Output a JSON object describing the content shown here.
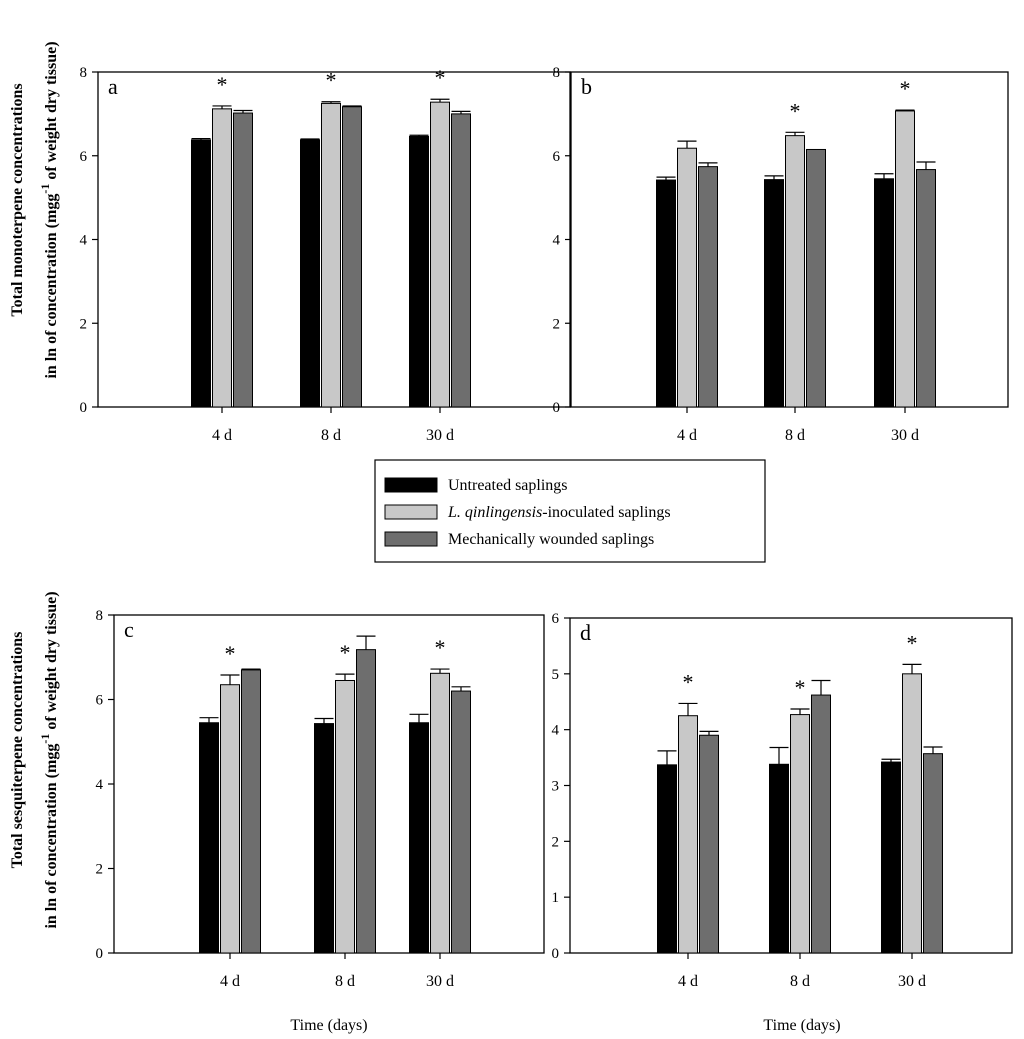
{
  "chart_data": {
    "colors": {
      "untreated": "#000000",
      "inoculated": "#c8c8c8",
      "wounded": "#6e6e6e"
    },
    "legend": [
      {
        "key": "untreated",
        "label": "Untreated saplings"
      },
      {
        "key": "inoculated",
        "label_italic": "L. qinlingensis",
        "label_rest": "-inoculated saplings"
      },
      {
        "key": "wounded",
        "label": "Mechanically wounded saplings"
      }
    ],
    "ylabel_top": {
      "line1": "Total monoterpene concentrations",
      "line2_pre": "in ln of concentration (mgg",
      "line2_sup": "-1",
      "line2_post": " of weight dry tissue)"
    },
    "ylabel_bottom": {
      "line1": "Total sesquiterpene concentrations",
      "line2_pre": "in ln of concentration (mgg",
      "line2_sup": "-1",
      "line2_post": " of weight dry tissue)"
    },
    "xlabel": "Time (days)",
    "panels": [
      {
        "id": "a",
        "type": "bar",
        "label": "a",
        "ylim": [
          0,
          8
        ],
        "yticks": [
          "0",
          "2",
          "4",
          "6",
          "8"
        ],
        "categories": [
          "4 d",
          "8 d",
          "30 d"
        ],
        "series": [
          {
            "name": "Untreated saplings",
            "key": "untreated",
            "values": [
              6.38,
              6.38,
              6.46
            ],
            "errors": [
              0.03,
              0.02,
              0.03
            ]
          },
          {
            "name": "L. qinlingensis-inoculated saplings",
            "key": "inoculated",
            "values": [
              7.12,
              7.25,
              7.28
            ],
            "errors": [
              0.07,
              0.04,
              0.07
            ]
          },
          {
            "name": "Mechanically wounded saplings",
            "key": "wounded",
            "values": [
              7.02,
              7.17,
              7.0
            ],
            "errors": [
              0.06,
              0.02,
              0.06
            ]
          }
        ],
        "annotations": [
          "*",
          "*",
          "*"
        ]
      },
      {
        "id": "b",
        "type": "bar",
        "label": "b",
        "ylim": [
          0,
          8
        ],
        "yticks": [
          "0",
          "2",
          "4",
          "6",
          "8"
        ],
        "categories": [
          "4 d",
          "8 d",
          "30 d"
        ],
        "series": [
          {
            "name": "Untreated saplings",
            "key": "untreated",
            "values": [
              5.42,
              5.43,
              5.45
            ],
            "errors": [
              0.07,
              0.09,
              0.12
            ]
          },
          {
            "name": "L. qinlingensis-inoculated saplings",
            "key": "inoculated",
            "values": [
              6.18,
              6.48,
              7.07
            ],
            "errors": [
              0.17,
              0.08,
              0.02
            ]
          },
          {
            "name": "Mechanically wounded saplings",
            "key": "wounded",
            "values": [
              5.74,
              6.15,
              5.67
            ],
            "errors": [
              0.09,
              0.0,
              0.18
            ]
          }
        ],
        "annotations": [
          "",
          "*",
          "*"
        ]
      },
      {
        "id": "c",
        "type": "bar",
        "label": "c",
        "ylim": [
          0,
          8
        ],
        "yticks": [
          "0",
          "2",
          "4",
          "6",
          "8"
        ],
        "categories": [
          "4 d",
          "8 d",
          "30 d"
        ],
        "series": [
          {
            "name": "Untreated saplings",
            "key": "untreated",
            "values": [
              5.45,
              5.43,
              5.45
            ],
            "errors": [
              0.12,
              0.12,
              0.2
            ]
          },
          {
            "name": "L. qinlingensis-inoculated saplings",
            "key": "inoculated",
            "values": [
              6.35,
              6.45,
              6.62
            ],
            "errors": [
              0.23,
              0.15,
              0.1
            ]
          },
          {
            "name": "Mechanically wounded saplings",
            "key": "wounded",
            "values": [
              6.7,
              7.18,
              6.2
            ],
            "errors": [
              0.02,
              0.32,
              0.1
            ]
          }
        ],
        "annotations": [
          "*",
          "*",
          "*"
        ]
      },
      {
        "id": "d",
        "type": "bar",
        "label": "d",
        "ylim": [
          0,
          6
        ],
        "yticks": [
          "0",
          "1",
          "2",
          "3",
          "4",
          "5",
          "6"
        ],
        "categories": [
          "4 d",
          "8 d",
          "30 d"
        ],
        "series": [
          {
            "name": "Untreated saplings",
            "key": "untreated",
            "values": [
              3.37,
              3.38,
              3.42
            ],
            "errors": [
              0.25,
              0.3,
              0.05
            ]
          },
          {
            "name": "L. qinlingensis-inoculated saplings",
            "key": "inoculated",
            "values": [
              4.25,
              4.27,
              5.0
            ],
            "errors": [
              0.22,
              0.1,
              0.17
            ]
          },
          {
            "name": "Mechanically wounded saplings",
            "key": "wounded",
            "values": [
              3.9,
              4.62,
              3.57
            ],
            "errors": [
              0.07,
              0.26,
              0.12
            ]
          }
        ],
        "annotations": [
          "*",
          "*",
          "*"
        ]
      }
    ]
  }
}
